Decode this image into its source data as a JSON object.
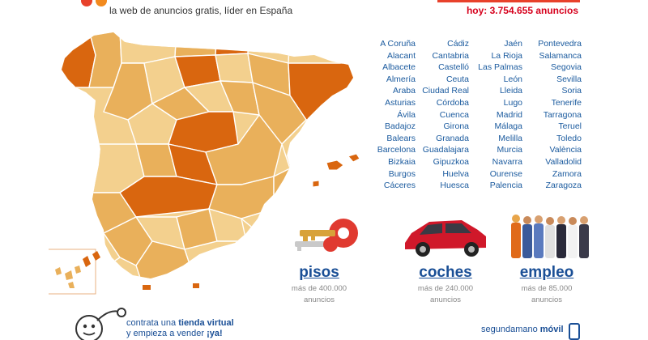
{
  "header": {
    "tagline": "la web de anuncios gratis, líder en España",
    "ad_count": "hoy: 3.754.655 anuncios"
  },
  "provinces": {
    "col1": [
      "A Coruña",
      "Alacant",
      "Albacete",
      "Almería",
      "Araba",
      "Asturias",
      "Ávila",
      "Badajoz",
      "Balears",
      "Barcelona",
      "Bizkaia",
      "Burgos",
      "Cáceres"
    ],
    "col2": [
      "Cádiz",
      "Cantabria",
      "Castelló",
      "Ceuta",
      "Ciudad Real",
      "Córdoba",
      "Cuenca",
      "Girona",
      "Granada",
      "Guadalajara",
      "Gipuzkoa",
      "Huelva",
      "Huesca"
    ],
    "col3": [
      "Jaén",
      "La Rioja",
      "Las Palmas",
      "León",
      "Lleida",
      "Lugo",
      "Madrid",
      "Málaga",
      "Melilla",
      "Murcia",
      "Navarra",
      "Ourense",
      "Palencia"
    ],
    "col4": [
      "Pontevedra",
      "Salamanca",
      "Segovia",
      "Sevilla",
      "Soria",
      "Tenerife",
      "Tarragona",
      "Teruel",
      "Toledo",
      "València",
      "Valladolid",
      "Zamora",
      "Zaragoza"
    ]
  },
  "categories": {
    "pisos": {
      "title": "pisos",
      "line1": "más de 400.000",
      "line2": "anuncios",
      "icon": "keys-icon"
    },
    "coches": {
      "title": "coches",
      "line1": "más de 240.000",
      "line2": "anuncios",
      "icon": "car-icon"
    },
    "empleo": {
      "title": "empleo",
      "line1": "más de 85.000",
      "line2": "anuncios",
      "icon": "workers-icon"
    }
  },
  "promo": {
    "line1_pre": "contrata una ",
    "line1_bold": "tienda virtual",
    "line2_pre": "y empieza a vender ",
    "line2_bold": "¡ya!"
  },
  "mobile": {
    "pre": "segundamano ",
    "bold": "móvil"
  },
  "colors": {
    "accent_red": "#d6001c",
    "link_blue": "#1a5a9e",
    "map_dark": "#d9660f",
    "map_mid": "#e9b05b",
    "map_light": "#f3d08e"
  }
}
